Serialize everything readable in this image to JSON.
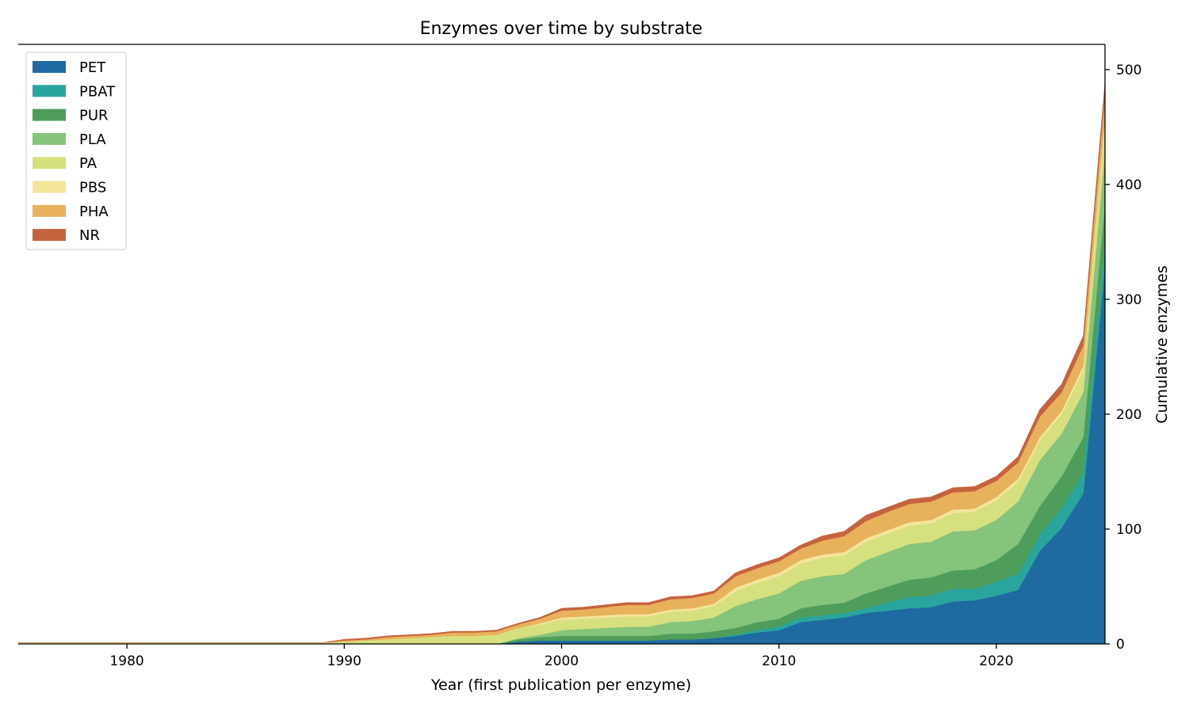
{
  "chart_data": {
    "type": "area",
    "stacked": true,
    "title": "Enzymes over time by substrate",
    "xlabel": "Year (first publication per enzyme)",
    "ylabel": "Cumulative enzymes",
    "y_axis_side": "right",
    "xlim": [
      1975,
      2025
    ],
    "ylim": [
      0,
      522
    ],
    "xticks": [
      1980,
      1990,
      2000,
      2010,
      2020
    ],
    "yticks": [
      0,
      100,
      200,
      300,
      400,
      500
    ],
    "grid": false,
    "legend_position": "upper-left",
    "x": [
      1975,
      1976,
      1977,
      1978,
      1979,
      1980,
      1981,
      1982,
      1983,
      1984,
      1985,
      1986,
      1987,
      1988,
      1989,
      1990,
      1991,
      1992,
      1993,
      1994,
      1995,
      1996,
      1997,
      1998,
      1999,
      2000,
      2001,
      2002,
      2003,
      2004,
      2005,
      2006,
      2007,
      2008,
      2009,
      2010,
      2011,
      2012,
      2013,
      2014,
      2015,
      2016,
      2017,
      2018,
      2019,
      2020,
      2021,
      2022,
      2023,
      2024,
      2025
    ],
    "series": [
      {
        "name": "PET",
        "color": "#1f6aa1",
        "values": [
          0,
          0,
          0,
          0,
          0,
          0,
          0,
          0,
          0,
          0,
          0,
          0,
          0,
          0,
          0,
          0,
          0,
          0,
          0,
          0,
          0,
          0,
          0,
          2,
          3,
          3,
          3,
          3,
          3,
          3,
          4,
          4,
          5,
          7,
          10,
          12,
          19,
          21,
          23,
          27,
          29,
          31,
          32,
          37,
          38,
          42,
          47,
          81,
          101,
          131,
          330
        ]
      },
      {
        "name": "PBAT",
        "color": "#29a59e",
        "values": [
          0,
          0,
          0,
          0,
          0,
          0,
          0,
          0,
          0,
          0,
          0,
          0,
          0,
          0,
          0,
          0,
          0,
          0,
          0,
          0,
          0,
          0,
          0,
          0,
          0,
          0,
          0,
          0,
          0,
          0,
          0,
          0,
          0,
          1,
          2,
          3,
          4,
          4,
          4,
          4,
          7,
          10,
          10,
          11,
          10,
          12,
          14,
          14,
          17,
          18,
          20
        ]
      },
      {
        "name": "PUR",
        "color": "#4e9d5b",
        "values": [
          0,
          0,
          0,
          0,
          0,
          0,
          0,
          0,
          0,
          0,
          0,
          0,
          0,
          0,
          0,
          0,
          0,
          0,
          0,
          0,
          0,
          0,
          0,
          2,
          3,
          4,
          4,
          4,
          4,
          4,
          5,
          5,
          6,
          6,
          7,
          7,
          8,
          9,
          9,
          13,
          14,
          15,
          16,
          16,
          17,
          19,
          26,
          25,
          28,
          31,
          35
        ]
      },
      {
        "name": "PLA",
        "color": "#86c37b",
        "values": [
          0,
          0,
          0,
          0,
          0,
          0,
          0,
          0,
          0,
          0,
          0,
          0,
          0,
          0,
          0,
          0,
          0,
          0,
          0,
          0,
          0,
          0,
          0,
          1,
          2,
          5,
          6,
          7,
          8,
          8,
          10,
          11,
          12,
          19,
          20,
          22,
          24,
          25,
          25,
          29,
          30,
          31,
          31,
          34,
          34,
          35,
          37,
          40,
          37,
          39,
          45
        ]
      },
      {
        "name": "PA",
        "color": "#d6e07e",
        "values": [
          1,
          1,
          1,
          1,
          1,
          1,
          1,
          1,
          1,
          1,
          1,
          1,
          1,
          1,
          1,
          2,
          3,
          4,
          5,
          6,
          7,
          7,
          8,
          9,
          9,
          9,
          9,
          9,
          9,
          9,
          9,
          9,
          10,
          13,
          14,
          15,
          15,
          16,
          16,
          16,
          16,
          16,
          16,
          16,
          16,
          17,
          17,
          17,
          17,
          19,
          25
        ]
      },
      {
        "name": "PBS",
        "color": "#f3e59a",
        "values": [
          0,
          0,
          0,
          0,
          0,
          0,
          0,
          0,
          0,
          0,
          0,
          0,
          0,
          0,
          0,
          0,
          0,
          0,
          0,
          0,
          0,
          0,
          0,
          0,
          1,
          2,
          2,
          2,
          2,
          2,
          2,
          2,
          2,
          3,
          3,
          3,
          3,
          3,
          3,
          3,
          3,
          3,
          3,
          3,
          3,
          3,
          3,
          3,
          3,
          4,
          5
        ]
      },
      {
        "name": "PHA",
        "color": "#e8b15b",
        "values": [
          0,
          0,
          0,
          0,
          0,
          0,
          0,
          0,
          0,
          0,
          0,
          0,
          0,
          0,
          0,
          1,
          1,
          2,
          2,
          2,
          3,
          3,
          3,
          3,
          4,
          6,
          6,
          7,
          8,
          8,
          9,
          9,
          9,
          10,
          10,
          10,
          10,
          12,
          14,
          15,
          16,
          16,
          16,
          15,
          15,
          14,
          14,
          18,
          16,
          18,
          20
        ]
      },
      {
        "name": "NR",
        "color": "#c6633f",
        "values": [
          0,
          0,
          0,
          0,
          0,
          0,
          0,
          0,
          0,
          0,
          0,
          0,
          0,
          0,
          0,
          1,
          1,
          1,
          1,
          1,
          1,
          1,
          1,
          1,
          1,
          2,
          2,
          2,
          2,
          2,
          2,
          2,
          2,
          3,
          3,
          3,
          3,
          4,
          4,
          5,
          4,
          4,
          4,
          4,
          4,
          4,
          5,
          6,
          7,
          8,
          9
        ]
      }
    ]
  }
}
